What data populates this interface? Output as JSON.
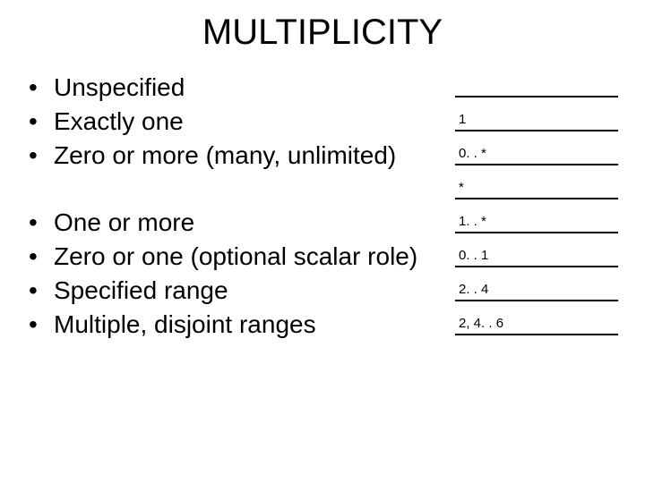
{
  "title": "MULTIPLICITY",
  "group1": {
    "b0": "Unspecified",
    "b1": "Exactly one",
    "b2": "Zero or more (many, unlimited)"
  },
  "group2": {
    "b0": "One or more",
    "b1": "Zero or one (optional scalar role)",
    "b2": "Specified range",
    "b3": "Multiple, disjoint ranges"
  },
  "notations": {
    "n0": "",
    "n1": "1",
    "n2": "0. . *",
    "n3": "*",
    "n4": "1. . *",
    "n5": "0. . 1",
    "n6": "2. . 4",
    "n7": "2, 4. . 6"
  },
  "colors": {
    "bg": "#ffffff",
    "fg": "#000000"
  },
  "fontsize": {
    "title": 40,
    "body": 28,
    "notation": 15
  }
}
